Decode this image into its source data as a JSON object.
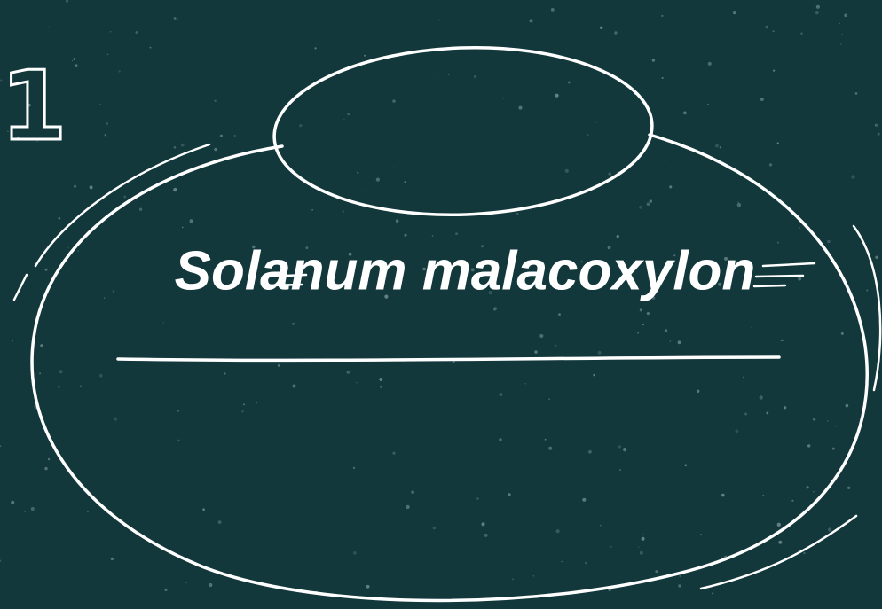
{
  "slide": {
    "number": "1",
    "title": "Solanum malacoxylon"
  }
}
